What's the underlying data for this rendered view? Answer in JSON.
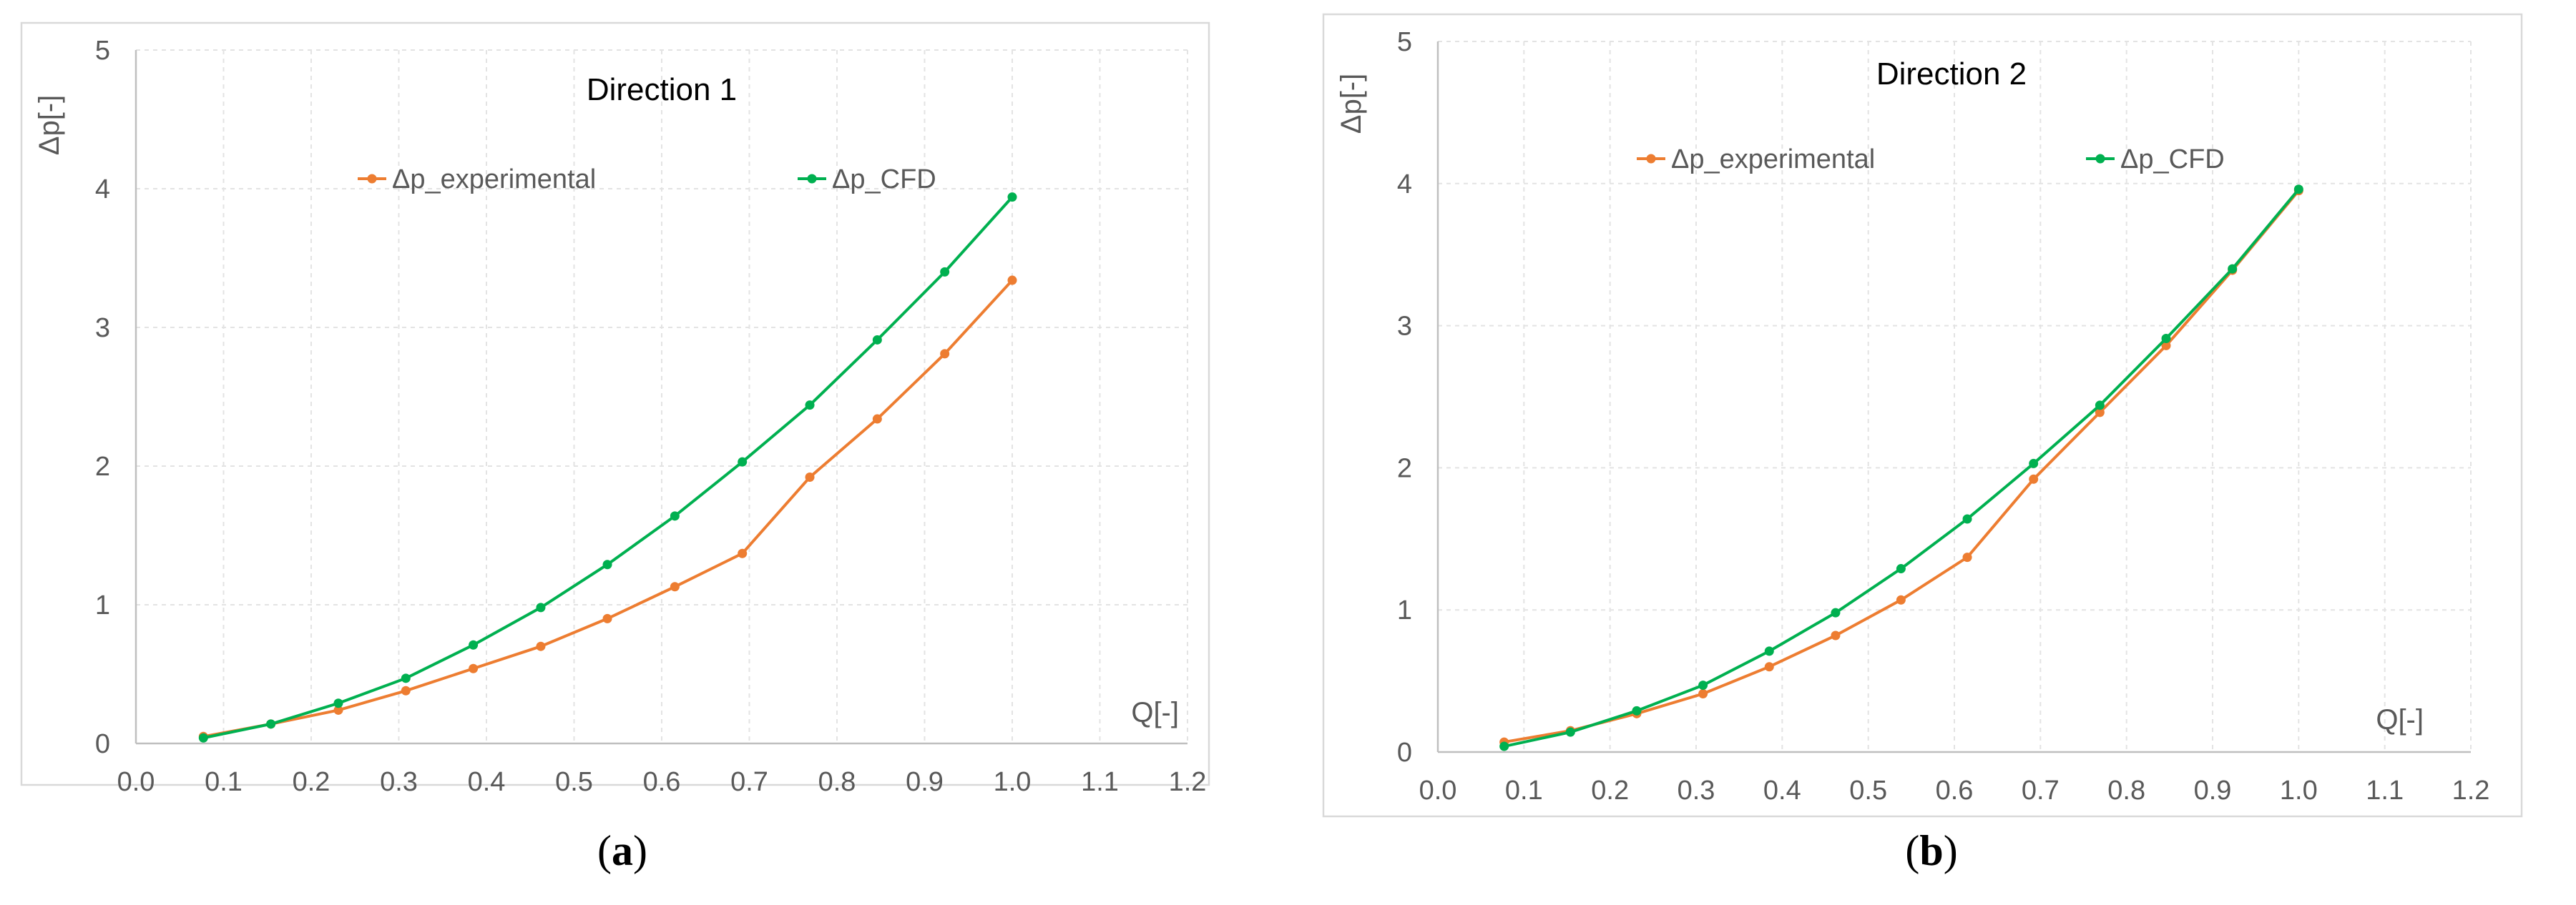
{
  "chart_data": [
    {
      "type": "line",
      "panel": "a",
      "caption_open": "(",
      "caption_letter": "a",
      "caption_close": ")",
      "title": "Direction 1",
      "xlabel": "Q[-]",
      "ylabel": "Δp[-]",
      "xlim": [
        0.0,
        1.2
      ],
      "ylim": [
        0,
        5
      ],
      "xticks": [
        "0.0",
        "0.1",
        "0.2",
        "0.3",
        "0.4",
        "0.5",
        "0.6",
        "0.7",
        "0.8",
        "0.9",
        "1.0",
        "1.1",
        "1.2"
      ],
      "yticks": [
        "0",
        "1",
        "2",
        "3",
        "4",
        "5"
      ],
      "legend_position": "top-center",
      "series": [
        {
          "name": "Δp_experimental",
          "color": "#ED7D31",
          "x": [
            0.077,
            0.154,
            0.231,
            0.308,
            0.385,
            0.462,
            0.538,
            0.615,
            0.692,
            0.769,
            0.846,
            0.923,
            1.0
          ],
          "y": [
            0.05,
            0.14,
            0.24,
            0.38,
            0.54,
            0.7,
            0.9,
            1.13,
            1.37,
            1.92,
            2.34,
            2.81,
            3.34
          ]
        },
        {
          "name": "Δp_CFD",
          "color": "#00B050",
          "x": [
            0.077,
            0.154,
            0.231,
            0.308,
            0.385,
            0.462,
            0.538,
            0.615,
            0.692,
            0.769,
            0.846,
            0.923,
            1.0
          ],
          "y": [
            0.04,
            0.14,
            0.29,
            0.47,
            0.71,
            0.98,
            1.29,
            1.64,
            2.03,
            2.44,
            2.91,
            3.4,
            3.94
          ]
        }
      ]
    },
    {
      "type": "line",
      "panel": "b",
      "caption_open": "(",
      "caption_letter": "b",
      "caption_close": ")",
      "title": "Direction 2",
      "xlabel": "Q[-]",
      "ylabel": "Δp[-]",
      "xlim": [
        0.0,
        1.2
      ],
      "ylim": [
        0,
        5
      ],
      "xticks": [
        "0.0",
        "0.1",
        "0.2",
        "0.3",
        "0.4",
        "0.5",
        "0.6",
        "0.7",
        "0.8",
        "0.9",
        "1.0",
        "1.1",
        "1.2"
      ],
      "yticks": [
        "0",
        "1",
        "2",
        "3",
        "4",
        "5"
      ],
      "legend_position": "top-center",
      "series": [
        {
          "name": "Δp_experimental",
          "color": "#ED7D31",
          "x": [
            0.077,
            0.154,
            0.231,
            0.308,
            0.385,
            0.462,
            0.538,
            0.615,
            0.692,
            0.769,
            0.846,
            0.923,
            1.0
          ],
          "y": [
            0.07,
            0.15,
            0.27,
            0.41,
            0.6,
            0.82,
            1.07,
            1.37,
            1.92,
            2.39,
            2.86,
            3.39,
            3.95
          ]
        },
        {
          "name": "Δp_CFD",
          "color": "#00B050",
          "x": [
            0.077,
            0.154,
            0.231,
            0.308,
            0.385,
            0.462,
            0.538,
            0.615,
            0.692,
            0.769,
            0.846,
            0.923,
            1.0
          ],
          "y": [
            0.04,
            0.14,
            0.29,
            0.47,
            0.71,
            0.98,
            1.29,
            1.64,
            2.03,
            2.44,
            2.91,
            3.4,
            3.96
          ]
        }
      ]
    }
  ]
}
